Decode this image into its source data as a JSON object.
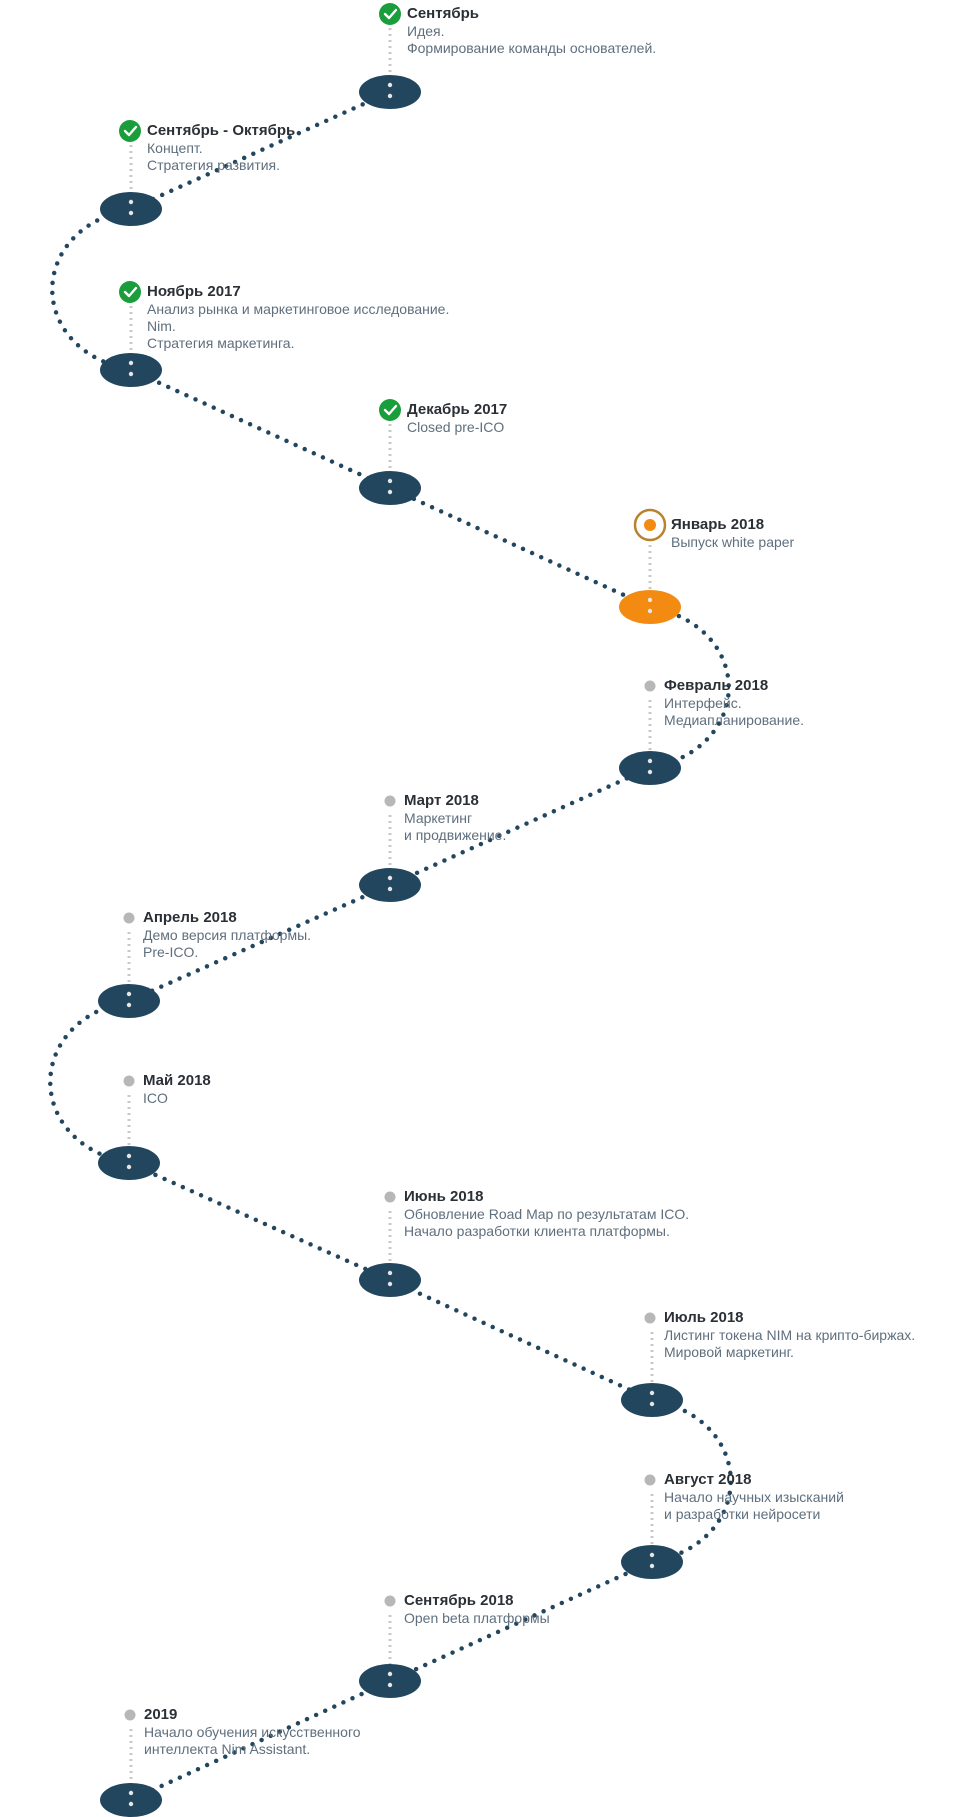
{
  "colors": {
    "node": "#23465f",
    "path": "#23465f",
    "current": "#f38a12",
    "done": "#1a9e3b",
    "pending": "#b7b7b7",
    "title": "#2b2f36",
    "text": "#5f6f7e"
  },
  "milestones": [
    {
      "status": "done",
      "title": "Сентябрь",
      "lines": [
        "Идея.",
        "Формирование команды основателей."
      ]
    },
    {
      "status": "done",
      "title": "Сентябрь - Октябрь",
      "lines": [
        "Концепт.",
        "Стратегия развития."
      ]
    },
    {
      "status": "done",
      "title": "Ноябрь 2017",
      "lines": [
        "Анализ рынка и маркетинговое исследование.",
        "Nim.",
        "Стратегия маркетинга."
      ]
    },
    {
      "status": "done",
      "title": "Декабрь 2017",
      "lines": [
        "Closed pre-ICO"
      ]
    },
    {
      "status": "current",
      "title": "Январь 2018",
      "lines": [
        "Выпуск white paper"
      ]
    },
    {
      "status": "pending",
      "title": "Февраль 2018",
      "lines": [
        "Интерфейс.",
        "Медиапланирование."
      ]
    },
    {
      "status": "pending",
      "title": "Март 2018",
      "lines": [
        "Маркетинг",
        "и продвижение."
      ]
    },
    {
      "status": "pending",
      "title": "Апрель 2018",
      "lines": [
        "Демо версия платформы.",
        "Pre-ICO."
      ]
    },
    {
      "status": "pending",
      "title": "Май 2018",
      "lines": [
        "ICO"
      ]
    },
    {
      "status": "pending",
      "title": "Июнь 2018",
      "lines": [
        "Обновление Road Map по результатам ICO.",
        "Начало разработки клиента платформы."
      ]
    },
    {
      "status": "pending",
      "title": "Июль 2018",
      "lines": [
        "Листинг токена NIM на крипто-биржах.",
        "Мировой маркетинг."
      ]
    },
    {
      "status": "pending",
      "title": "Август 2018",
      "lines": [
        "Начало научных изысканий",
        "и разработки нейросети"
      ]
    },
    {
      "status": "pending",
      "title": "Сентябрь 2018",
      "lines": [
        "Open beta платформы"
      ]
    },
    {
      "status": "pending",
      "title": "2019",
      "lines": [
        "Начало обучения искусственного",
        "интеллекта Nim Assistant."
      ]
    }
  ]
}
